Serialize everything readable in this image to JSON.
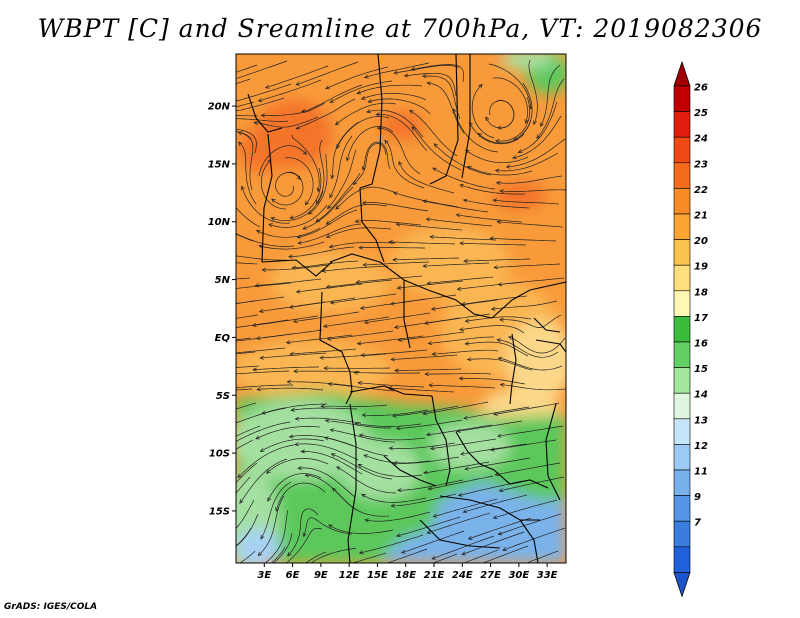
{
  "title": "WBPT [C] and Sreamline at 700hPa, VT: 2019082306",
  "footer": "GrADS: IGES/COLA",
  "map": {
    "lat_ticks": [
      "20N",
      "15N",
      "10N",
      "5N",
      "EQ",
      "5S",
      "10S",
      "15S"
    ],
    "lat_values": [
      20,
      15,
      10,
      5,
      0,
      -5,
      -10,
      -15
    ],
    "lon_ticks": [
      "3E",
      "6E",
      "9E",
      "12E",
      "15E",
      "18E",
      "21E",
      "24E",
      "27E",
      "30E",
      "33E"
    ],
    "lon_values": [
      3,
      6,
      9,
      12,
      15,
      18,
      21,
      24,
      27,
      30,
      33
    ],
    "lon_range": [
      0,
      35
    ],
    "lat_range": [
      -19.5,
      24.5
    ]
  },
  "colorbar": {
    "labels": [
      "26",
      "25",
      "24",
      "23",
      "22",
      "21",
      "20",
      "19",
      "18",
      "17",
      "16",
      "15",
      "14",
      "13",
      "12",
      "11",
      "9",
      "7"
    ],
    "colors": [
      "#c00000",
      "#e01e0e",
      "#f04a14",
      "#f46a1c",
      "#f78b26",
      "#f9a433",
      "#fbc44f",
      "#fde07c",
      "#fff7b3",
      "#3cbc3c",
      "#64d064",
      "#a4e6a0",
      "#e0f6e0",
      "#c4e4f8",
      "#9ccaf4",
      "#78b0ec",
      "#5694e6",
      "#3a7ce0",
      "#2060d8"
    ],
    "top_color": "#a00000",
    "bottom_color": "#1c54cc"
  },
  "palette": {
    "orange_dark": "#f4742a",
    "orange": "#f89a3a",
    "orange_light": "#fab652",
    "yellow": "#fbd889",
    "green_light": "#a4e0a0",
    "green": "#5cc85c",
    "green_dark": "#3fb54a",
    "blue_light": "#a8d2f4",
    "blue": "#7ab2ea",
    "red": "#e8542a"
  }
}
